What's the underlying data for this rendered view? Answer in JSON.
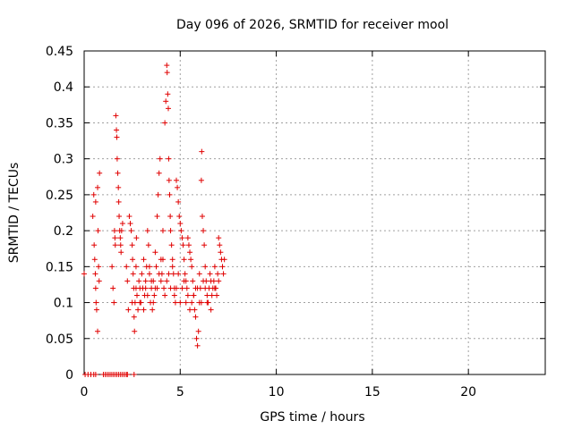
{
  "chart_data": {
    "type": "scatter",
    "title": "Day 096 of 2026, SRMTID for receiver mool",
    "xlabel": "GPS time / hours",
    "ylabel": "SRMTID / TECUs",
    "xlim": [
      0,
      24
    ],
    "ylim": [
      0,
      0.45
    ],
    "xticks": [
      0,
      5,
      10,
      15,
      20
    ],
    "xtick_labels": [
      "0",
      "5",
      "10",
      "15",
      "20"
    ],
    "yticks": [
      0,
      0.05,
      0.1,
      0.15,
      0.2,
      0.25,
      0.3,
      0.35,
      0.4,
      0.45
    ],
    "ytick_labels": [
      "0",
      "0.05",
      "0.1",
      "0.15",
      "0.2",
      "0.25",
      "0.3",
      "0.35",
      "0.4",
      "0.45"
    ],
    "grid": true,
    "marker": "+",
    "color": "#e00000",
    "series": [
      {
        "name": "SRMTID",
        "points": [
          [
            0.0,
            0.14
          ],
          [
            0.05,
            0.0
          ],
          [
            0.2,
            0.0
          ],
          [
            0.35,
            0.0
          ],
          [
            0.5,
            0.0
          ],
          [
            0.6,
            0.0
          ],
          [
            1.0,
            0.0
          ],
          [
            1.1,
            0.0
          ],
          [
            1.2,
            0.0
          ],
          [
            1.3,
            0.0
          ],
          [
            1.4,
            0.0
          ],
          [
            1.5,
            0.0
          ],
          [
            1.6,
            0.0
          ],
          [
            1.7,
            0.0
          ],
          [
            1.8,
            0.0
          ],
          [
            1.9,
            0.0
          ],
          [
            2.0,
            0.0
          ],
          [
            2.1,
            0.0
          ],
          [
            2.2,
            0.0
          ],
          [
            2.25,
            0.0
          ],
          [
            2.6,
            0.0
          ],
          [
            0.45,
            0.22
          ],
          [
            0.5,
            0.25
          ],
          [
            0.52,
            0.18
          ],
          [
            0.55,
            0.16
          ],
          [
            0.58,
            0.14
          ],
          [
            0.6,
            0.12
          ],
          [
            0.62,
            0.1
          ],
          [
            0.65,
            0.09
          ],
          [
            0.7,
            0.26
          ],
          [
            0.72,
            0.2
          ],
          [
            0.75,
            0.15
          ],
          [
            0.78,
            0.13
          ],
          [
            0.8,
            0.28
          ],
          [
            0.7,
            0.06
          ],
          [
            0.6,
            0.24
          ],
          [
            1.45,
            0.15
          ],
          [
            1.5,
            0.12
          ],
          [
            1.55,
            0.1
          ],
          [
            1.58,
            0.2
          ],
          [
            1.6,
            0.19
          ],
          [
            1.62,
            0.18
          ],
          [
            1.65,
            0.36
          ],
          [
            1.68,
            0.34
          ],
          [
            1.7,
            0.33
          ],
          [
            1.72,
            0.3
          ],
          [
            1.75,
            0.28
          ],
          [
            1.78,
            0.26
          ],
          [
            1.8,
            0.24
          ],
          [
            1.82,
            0.22
          ],
          [
            1.85,
            0.2
          ],
          [
            1.88,
            0.19
          ],
          [
            1.9,
            0.18
          ],
          [
            1.92,
            0.17
          ],
          [
            1.95,
            0.2
          ],
          [
            2.0,
            0.21
          ],
          [
            2.2,
            0.15
          ],
          [
            2.25,
            0.13
          ],
          [
            2.3,
            0.09
          ],
          [
            2.35,
            0.22
          ],
          [
            2.4,
            0.21
          ],
          [
            2.45,
            0.2
          ],
          [
            2.5,
            0.18
          ],
          [
            2.52,
            0.16
          ],
          [
            2.55,
            0.14
          ],
          [
            2.58,
            0.12
          ],
          [
            2.6,
            0.08
          ],
          [
            2.62,
            0.06
          ],
          [
            2.65,
            0.1
          ],
          [
            2.7,
            0.15
          ],
          [
            2.72,
            0.19
          ],
          [
            2.75,
            0.11
          ],
          [
            2.8,
            0.09
          ],
          [
            2.85,
            0.13
          ],
          [
            2.9,
            0.12
          ],
          [
            2.95,
            0.1
          ],
          [
            3.0,
            0.14
          ],
          [
            3.05,
            0.12
          ],
          [
            3.1,
            0.16
          ],
          [
            3.15,
            0.11
          ],
          [
            3.2,
            0.13
          ],
          [
            3.25,
            0.15
          ],
          [
            3.3,
            0.2
          ],
          [
            3.35,
            0.18
          ],
          [
            3.4,
            0.14
          ],
          [
            3.45,
            0.1
          ],
          [
            3.5,
            0.12
          ],
          [
            3.55,
            0.09
          ],
          [
            3.6,
            0.13
          ],
          [
            3.65,
            0.11
          ],
          [
            3.7,
            0.17
          ],
          [
            3.75,
            0.15
          ],
          [
            3.8,
            0.22
          ],
          [
            3.85,
            0.25
          ],
          [
            3.9,
            0.28
          ],
          [
            3.95,
            0.3
          ],
          [
            4.0,
            0.16
          ],
          [
            4.05,
            0.14
          ],
          [
            4.1,
            0.2
          ],
          [
            4.15,
            0.12
          ],
          [
            4.2,
            0.35
          ],
          [
            4.25,
            0.38
          ],
          [
            4.3,
            0.43
          ],
          [
            4.32,
            0.42
          ],
          [
            4.35,
            0.39
          ],
          [
            4.38,
            0.37
          ],
          [
            4.4,
            0.3
          ],
          [
            4.42,
            0.27
          ],
          [
            4.45,
            0.25
          ],
          [
            4.48,
            0.22
          ],
          [
            4.5,
            0.2
          ],
          [
            4.55,
            0.18
          ],
          [
            4.6,
            0.16
          ],
          [
            4.65,
            0.14
          ],
          [
            4.7,
            0.12
          ],
          [
            4.75,
            0.1
          ],
          [
            4.8,
            0.27
          ],
          [
            4.85,
            0.26
          ],
          [
            4.9,
            0.24
          ],
          [
            4.95,
            0.22
          ],
          [
            5.0,
            0.21
          ],
          [
            5.05,
            0.2
          ],
          [
            5.1,
            0.19
          ],
          [
            5.15,
            0.18
          ],
          [
            5.2,
            0.16
          ],
          [
            5.25,
            0.14
          ],
          [
            5.3,
            0.13
          ],
          [
            5.35,
            0.12
          ],
          [
            5.4,
            0.19
          ],
          [
            5.45,
            0.18
          ],
          [
            5.5,
            0.17
          ],
          [
            5.55,
            0.16
          ],
          [
            5.6,
            0.15
          ],
          [
            5.65,
            0.13
          ],
          [
            5.7,
            0.11
          ],
          [
            5.75,
            0.09
          ],
          [
            5.8,
            0.08
          ],
          [
            5.85,
            0.05
          ],
          [
            5.9,
            0.04
          ],
          [
            5.95,
            0.06
          ],
          [
            6.0,
            0.1
          ],
          [
            6.05,
            0.12
          ],
          [
            6.1,
            0.27
          ],
          [
            6.12,
            0.31
          ],
          [
            6.15,
            0.22
          ],
          [
            6.2,
            0.2
          ],
          [
            6.25,
            0.18
          ],
          [
            6.3,
            0.15
          ],
          [
            6.35,
            0.13
          ],
          [
            6.4,
            0.11
          ],
          [
            6.45,
            0.1
          ],
          [
            6.5,
            0.12
          ],
          [
            6.55,
            0.14
          ],
          [
            6.6,
            0.13
          ],
          [
            6.65,
            0.11
          ],
          [
            6.7,
            0.12
          ],
          [
            6.75,
            0.13
          ],
          [
            6.8,
            0.15
          ],
          [
            6.85,
            0.12
          ],
          [
            6.9,
            0.11
          ],
          [
            6.95,
            0.14
          ],
          [
            7.0,
            0.19
          ],
          [
            7.05,
            0.18
          ],
          [
            7.1,
            0.17
          ],
          [
            7.15,
            0.16
          ],
          [
            7.2,
            0.15
          ],
          [
            7.25,
            0.14
          ],
          [
            7.3,
            0.16
          ],
          [
            3.2,
            0.12
          ],
          [
            3.4,
            0.15
          ],
          [
            3.6,
            0.1
          ],
          [
            3.8,
            0.12
          ],
          [
            4.0,
            0.13
          ],
          [
            4.2,
            0.11
          ],
          [
            4.4,
            0.14
          ],
          [
            4.6,
            0.15
          ],
          [
            4.8,
            0.12
          ],
          [
            5.0,
            0.1
          ],
          [
            5.2,
            0.13
          ],
          [
            5.4,
            0.11
          ],
          [
            5.6,
            0.1
          ],
          [
            5.8,
            0.12
          ],
          [
            6.0,
            0.14
          ],
          [
            6.2,
            0.13
          ],
          [
            6.4,
            0.1
          ],
          [
            6.6,
            0.09
          ],
          [
            6.8,
            0.12
          ],
          [
            7.0,
            0.13
          ],
          [
            2.5,
            0.1
          ],
          [
            2.7,
            0.12
          ],
          [
            2.9,
            0.1
          ],
          [
            3.1,
            0.09
          ],
          [
            3.3,
            0.11
          ],
          [
            3.5,
            0.13
          ],
          [
            3.7,
            0.12
          ],
          [
            3.9,
            0.14
          ],
          [
            4.1,
            0.16
          ],
          [
            4.3,
            0.13
          ],
          [
            4.5,
            0.12
          ],
          [
            4.7,
            0.11
          ],
          [
            4.9,
            0.14
          ],
          [
            5.1,
            0.12
          ],
          [
            5.3,
            0.1
          ],
          [
            5.5,
            0.09
          ],
          [
            5.7,
            0.11
          ],
          [
            5.9,
            0.12
          ],
          [
            6.1,
            0.1
          ],
          [
            6.3,
            0.12
          ]
        ]
      }
    ]
  }
}
